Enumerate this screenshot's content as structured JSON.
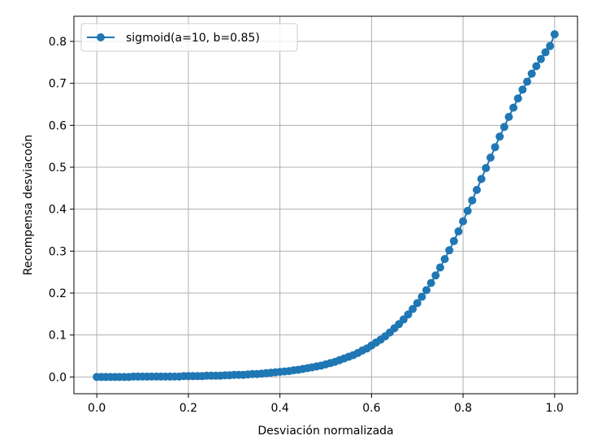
{
  "chart_data": {
    "type": "line",
    "xlabel": "Desviación normalizada",
    "ylabel": "Recompensa desviacoón",
    "xlim": [
      -0.05,
      1.05
    ],
    "ylim": [
      -0.04,
      0.86
    ],
    "xticks": [
      0.0,
      0.2,
      0.4,
      0.6,
      0.8,
      1.0
    ],
    "xtick_labels": [
      "0.0",
      "0.2",
      "0.4",
      "0.6",
      "0.8",
      "1.0"
    ],
    "yticks": [
      0.0,
      0.1,
      0.2,
      0.3,
      0.4,
      0.5,
      0.6,
      0.7,
      0.8
    ],
    "ytick_labels": [
      "0.0",
      "0.1",
      "0.2",
      "0.3",
      "0.4",
      "0.5",
      "0.6",
      "0.7",
      "0.8"
    ],
    "grid": true,
    "legend_position": "upper-left",
    "series": [
      {
        "name": "sigmoid(a=10, b=0.85)",
        "color": "#1f77b4",
        "marker": "circle",
        "x": [
          0.0,
          0.01,
          0.02,
          0.03,
          0.04,
          0.05,
          0.06,
          0.07,
          0.08,
          0.09,
          0.1,
          0.11,
          0.12,
          0.13,
          0.14,
          0.15,
          0.16,
          0.17,
          0.18,
          0.19,
          0.2,
          0.21,
          0.22,
          0.23,
          0.24,
          0.25,
          0.26,
          0.27,
          0.28,
          0.29,
          0.3,
          0.31,
          0.32,
          0.33,
          0.34,
          0.35,
          0.36,
          0.37,
          0.38,
          0.39,
          0.4,
          0.41,
          0.42,
          0.43,
          0.44,
          0.45,
          0.46,
          0.47,
          0.48,
          0.49,
          0.5,
          0.51,
          0.52,
          0.53,
          0.54,
          0.55,
          0.56,
          0.57,
          0.58,
          0.59,
          0.6,
          0.61,
          0.62,
          0.63,
          0.64,
          0.65,
          0.66,
          0.67,
          0.68,
          0.69,
          0.7,
          0.71,
          0.72,
          0.73,
          0.74,
          0.75,
          0.76,
          0.77,
          0.78,
          0.79,
          0.8,
          0.81,
          0.82,
          0.83,
          0.84,
          0.85,
          0.86,
          0.87,
          0.88,
          0.89,
          0.9,
          0.91,
          0.92,
          0.93,
          0.94,
          0.95,
          0.96,
          0.97,
          0.98,
          0.99,
          1.0
        ],
        "y": [
          0.0,
          0.0,
          0.0,
          0.0,
          0.0,
          0.0,
          0.0,
          0.0,
          0.001,
          0.001,
          0.001,
          0.001,
          0.001,
          0.001,
          0.001,
          0.001,
          0.001,
          0.001,
          0.001,
          0.002,
          0.002,
          0.002,
          0.002,
          0.002,
          0.003,
          0.003,
          0.003,
          0.003,
          0.004,
          0.004,
          0.005,
          0.005,
          0.005,
          0.006,
          0.007,
          0.007,
          0.008,
          0.009,
          0.01,
          0.011,
          0.012,
          0.013,
          0.014,
          0.016,
          0.017,
          0.019,
          0.021,
          0.023,
          0.025,
          0.027,
          0.03,
          0.033,
          0.036,
          0.04,
          0.044,
          0.048,
          0.052,
          0.057,
          0.063,
          0.068,
          0.075,
          0.082,
          0.089,
          0.097,
          0.106,
          0.116,
          0.126,
          0.137,
          0.149,
          0.162,
          0.176,
          0.191,
          0.207,
          0.224,
          0.242,
          0.261,
          0.281,
          0.302,
          0.324,
          0.347,
          0.371,
          0.396,
          0.421,
          0.446,
          0.472,
          0.498,
          0.523,
          0.548,
          0.573,
          0.596,
          0.62,
          0.642,
          0.664,
          0.685,
          0.704,
          0.723,
          0.741,
          0.758,
          0.774,
          0.789,
          0.817
        ]
      }
    ]
  }
}
